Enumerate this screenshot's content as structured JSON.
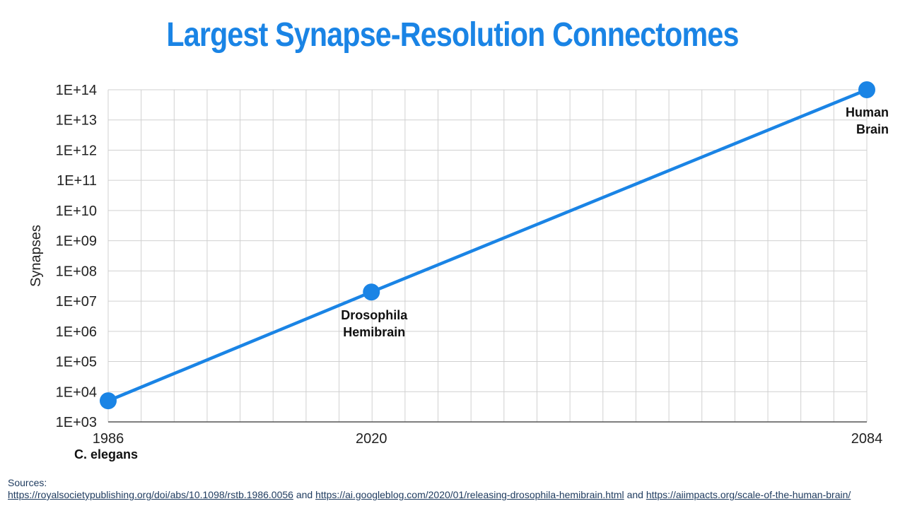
{
  "title": "Largest Synapse-Resolution Connectomes",
  "colors": {
    "accent": "#1a84e5",
    "grid": "#d0d0d0",
    "axis": "#555555"
  },
  "chart_data": {
    "type": "line",
    "title": "Largest Synapse-Resolution Connectomes",
    "xlabel": "",
    "ylabel": "Synapses",
    "yscale": "log",
    "grid": true,
    "xlim": [
      1986,
      2084
    ],
    "ylim": [
      1000,
      100000000000000
    ],
    "x_ticks": [
      "1986",
      "2020",
      "2084"
    ],
    "y_ticks": [
      "1E+03",
      "1E+04",
      "1E+05",
      "1E+06",
      "1E+07",
      "1E+08",
      "1E+09",
      "1E+10",
      "1E+11",
      "1E+12",
      "1E+13",
      "1E+14"
    ],
    "x_extra_labels": [
      "C. elegans"
    ],
    "series": [
      {
        "points": [
          {
            "x": 1986,
            "y": 5000,
            "label": "C. elegans"
          },
          {
            "x": 2020,
            "y": 20000000,
            "label": "Drosophila Hemibrain"
          },
          {
            "x": 2084,
            "y": 100000000000000,
            "label": "Human Brain"
          }
        ]
      }
    ]
  },
  "sources": {
    "heading": "Sources:",
    "links": [
      "https://royalsocietypublishing.org/doi/abs/10.1098/rstb.1986.0056",
      "https://ai.googleblog.com/2020/01/releasing-drosophila-hemibrain.html",
      "https://aiimpacts.org/scale-of-the-human-brain/"
    ],
    "separator": "and"
  }
}
